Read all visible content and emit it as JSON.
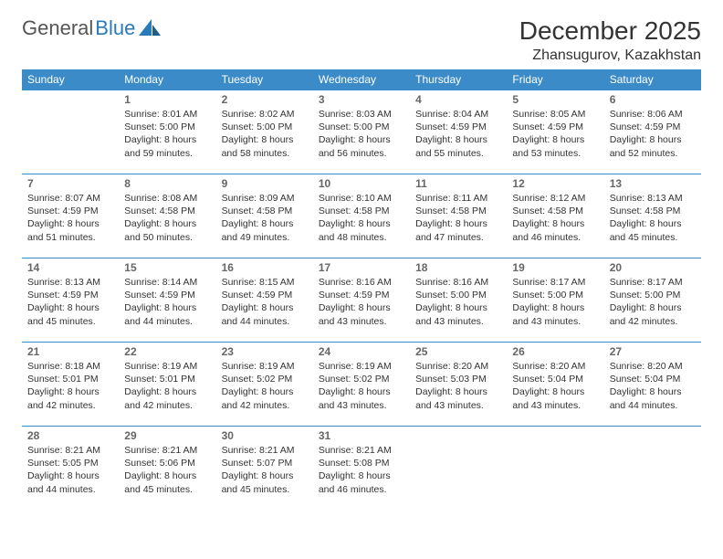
{
  "brand": {
    "part1": "General",
    "part2": "Blue"
  },
  "title": "December 2025",
  "location": "Zhansugurov, Kazakhstan",
  "calendar": {
    "header_bg": "#3b8bc8",
    "header_fg": "#ffffff",
    "rule_color": "#3b8bc8",
    "weekdays": [
      "Sunday",
      "Monday",
      "Tuesday",
      "Wednesday",
      "Thursday",
      "Friday",
      "Saturday"
    ],
    "weeks": [
      [
        null,
        {
          "n": "1",
          "sr": "8:01 AM",
          "ss": "5:00 PM",
          "dl": "8 hours and 59 minutes."
        },
        {
          "n": "2",
          "sr": "8:02 AM",
          "ss": "5:00 PM",
          "dl": "8 hours and 58 minutes."
        },
        {
          "n": "3",
          "sr": "8:03 AM",
          "ss": "5:00 PM",
          "dl": "8 hours and 56 minutes."
        },
        {
          "n": "4",
          "sr": "8:04 AM",
          "ss": "4:59 PM",
          "dl": "8 hours and 55 minutes."
        },
        {
          "n": "5",
          "sr": "8:05 AM",
          "ss": "4:59 PM",
          "dl": "8 hours and 53 minutes."
        },
        {
          "n": "6",
          "sr": "8:06 AM",
          "ss": "4:59 PM",
          "dl": "8 hours and 52 minutes."
        }
      ],
      [
        {
          "n": "7",
          "sr": "8:07 AM",
          "ss": "4:59 PM",
          "dl": "8 hours and 51 minutes."
        },
        {
          "n": "8",
          "sr": "8:08 AM",
          "ss": "4:58 PM",
          "dl": "8 hours and 50 minutes."
        },
        {
          "n": "9",
          "sr": "8:09 AM",
          "ss": "4:58 PM",
          "dl": "8 hours and 49 minutes."
        },
        {
          "n": "10",
          "sr": "8:10 AM",
          "ss": "4:58 PM",
          "dl": "8 hours and 48 minutes."
        },
        {
          "n": "11",
          "sr": "8:11 AM",
          "ss": "4:58 PM",
          "dl": "8 hours and 47 minutes."
        },
        {
          "n": "12",
          "sr": "8:12 AM",
          "ss": "4:58 PM",
          "dl": "8 hours and 46 minutes."
        },
        {
          "n": "13",
          "sr": "8:13 AM",
          "ss": "4:58 PM",
          "dl": "8 hours and 45 minutes."
        }
      ],
      [
        {
          "n": "14",
          "sr": "8:13 AM",
          "ss": "4:59 PM",
          "dl": "8 hours and 45 minutes."
        },
        {
          "n": "15",
          "sr": "8:14 AM",
          "ss": "4:59 PM",
          "dl": "8 hours and 44 minutes."
        },
        {
          "n": "16",
          "sr": "8:15 AM",
          "ss": "4:59 PM",
          "dl": "8 hours and 44 minutes."
        },
        {
          "n": "17",
          "sr": "8:16 AM",
          "ss": "4:59 PM",
          "dl": "8 hours and 43 minutes."
        },
        {
          "n": "18",
          "sr": "8:16 AM",
          "ss": "5:00 PM",
          "dl": "8 hours and 43 minutes."
        },
        {
          "n": "19",
          "sr": "8:17 AM",
          "ss": "5:00 PM",
          "dl": "8 hours and 43 minutes."
        },
        {
          "n": "20",
          "sr": "8:17 AM",
          "ss": "5:00 PM",
          "dl": "8 hours and 42 minutes."
        }
      ],
      [
        {
          "n": "21",
          "sr": "8:18 AM",
          "ss": "5:01 PM",
          "dl": "8 hours and 42 minutes."
        },
        {
          "n": "22",
          "sr": "8:19 AM",
          "ss": "5:01 PM",
          "dl": "8 hours and 42 minutes."
        },
        {
          "n": "23",
          "sr": "8:19 AM",
          "ss": "5:02 PM",
          "dl": "8 hours and 42 minutes."
        },
        {
          "n": "24",
          "sr": "8:19 AM",
          "ss": "5:02 PM",
          "dl": "8 hours and 43 minutes."
        },
        {
          "n": "25",
          "sr": "8:20 AM",
          "ss": "5:03 PM",
          "dl": "8 hours and 43 minutes."
        },
        {
          "n": "26",
          "sr": "8:20 AM",
          "ss": "5:04 PM",
          "dl": "8 hours and 43 minutes."
        },
        {
          "n": "27",
          "sr": "8:20 AM",
          "ss": "5:04 PM",
          "dl": "8 hours and 44 minutes."
        }
      ],
      [
        {
          "n": "28",
          "sr": "8:21 AM",
          "ss": "5:05 PM",
          "dl": "8 hours and 44 minutes."
        },
        {
          "n": "29",
          "sr": "8:21 AM",
          "ss": "5:06 PM",
          "dl": "8 hours and 45 minutes."
        },
        {
          "n": "30",
          "sr": "8:21 AM",
          "ss": "5:07 PM",
          "dl": "8 hours and 45 minutes."
        },
        {
          "n": "31",
          "sr": "8:21 AM",
          "ss": "5:08 PM",
          "dl": "8 hours and 46 minutes."
        },
        null,
        null,
        null
      ]
    ],
    "labels": {
      "sunrise": "Sunrise:",
      "sunset": "Sunset:",
      "daylight": "Daylight:"
    }
  }
}
